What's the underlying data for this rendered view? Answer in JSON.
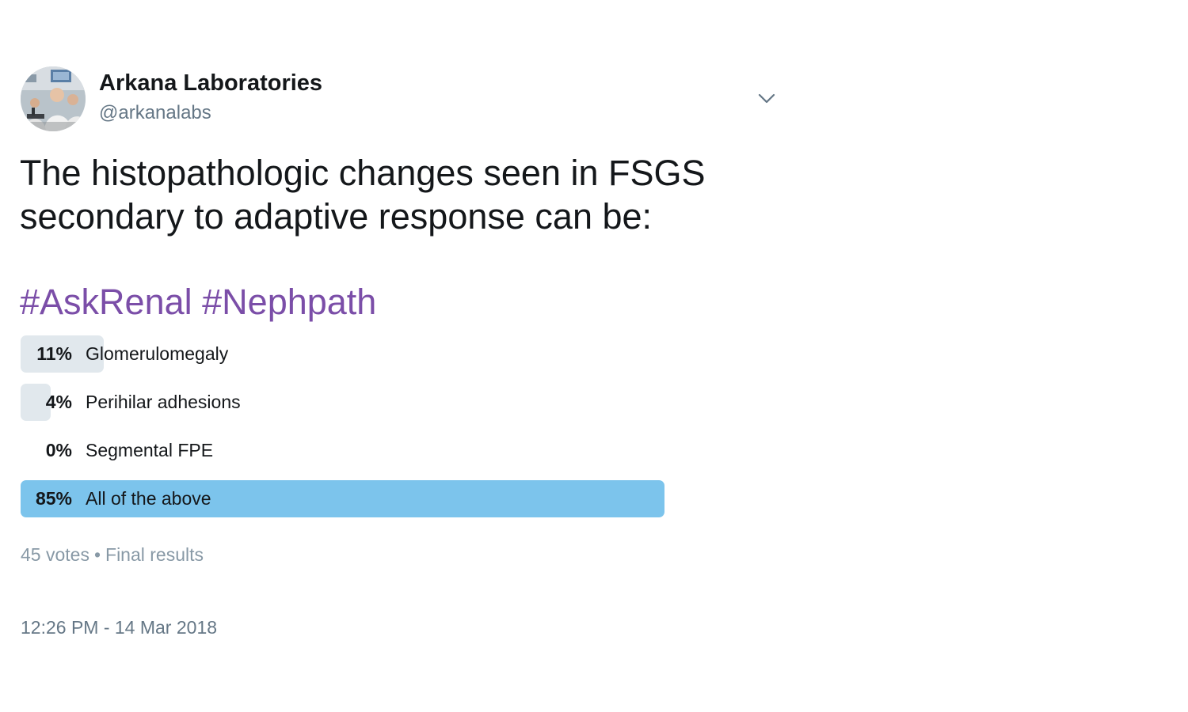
{
  "author": {
    "name": "Arkana Laboratories",
    "handle": "@arkanalabs",
    "avatar_icon": "lab-photo-avatar"
  },
  "tweet": {
    "text": "The histopathologic changes seen in FSGS secondary to adaptive response can be:",
    "hashtags": [
      "#AskRenal",
      "#Nephpath"
    ],
    "hashtag_color": "#7b4ea8"
  },
  "poll": {
    "options": [
      {
        "percent_label": "11%",
        "percent": 11,
        "label": "Glomerulomegaly",
        "winner": false
      },
      {
        "percent_label": "4%",
        "percent": 4,
        "label": "Perihilar adhesions",
        "winner": false
      },
      {
        "percent_label": "0%",
        "percent": 0,
        "label": "Segmental FPE",
        "winner": false
      },
      {
        "percent_label": "85%",
        "percent": 85,
        "label": "All of the above",
        "winner": true
      }
    ],
    "votes": "45 votes",
    "separator": "•",
    "status": "Final results",
    "bar_color": "#e1e8ed",
    "winner_color": "#7cc4ec"
  },
  "timestamp": "12:26 PM - 14 Mar 2018",
  "menu": {
    "icon": "chevron-down-icon"
  }
}
